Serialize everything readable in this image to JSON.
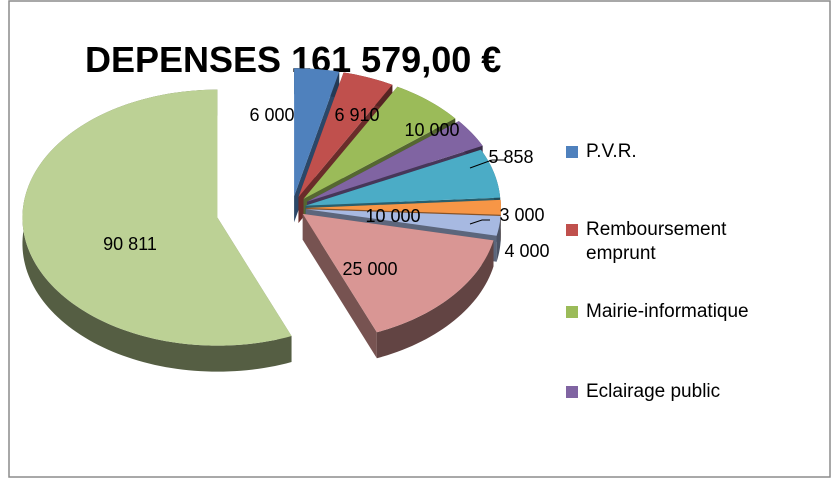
{
  "chart_data": {
    "type": "pie3d",
    "title": "DEPENSES  161 579,00 €",
    "categories": [
      "P.V.R.",
      "Remboursement emprunt",
      "Mairie-informatique",
      "Eclairage public",
      null,
      null,
      null,
      null,
      null
    ],
    "values": [
      6000,
      6910,
      10000,
      5858,
      10000,
      3000,
      4000,
      25000,
      90811
    ],
    "value_labels": [
      "6 000",
      "6 910",
      "10 000",
      "5 858",
      "10 000",
      "3 000",
      "4 000",
      "25 000",
      "90 811"
    ],
    "colors": [
      "#4f81bd",
      "#c0504d",
      "#9bbb59",
      "#8064a2",
      "#4bacc6",
      "#f79646",
      "#a7b9e1",
      "#d99694",
      "#bcd195"
    ],
    "legend": "right"
  }
}
